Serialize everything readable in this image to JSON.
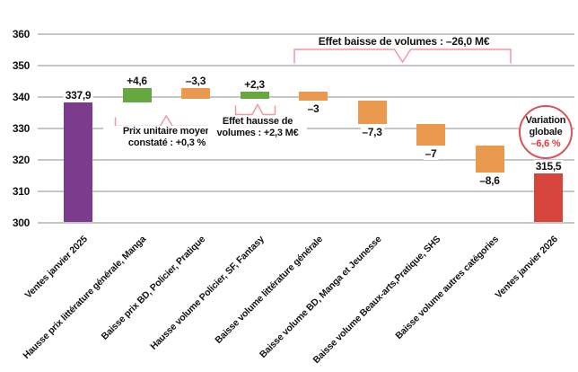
{
  "chart_data": {
    "type": "bar",
    "subtype": "waterfall",
    "unit": "M€",
    "ylim": [
      300,
      360
    ],
    "yticks": [
      360,
      350,
      340,
      330,
      320,
      310,
      300
    ],
    "grid": true,
    "bars": [
      {
        "label": "Ventes janvier 2025",
        "value": 337.9,
        "display": "337,9",
        "kind": "total",
        "label_pos": "above"
      },
      {
        "label": "Hausse prix littérature générale, Manga",
        "value": 4.6,
        "display": "+4,6",
        "kind": "delta",
        "label_pos": "above"
      },
      {
        "label": "Baisse prix BD, Policier, Pratique",
        "value": -3.3,
        "display": "–3,3",
        "kind": "delta",
        "label_pos": "above"
      },
      {
        "label": "Hausse volume Policier, SF, Fantasy",
        "value": 2.3,
        "display": "+2,3",
        "kind": "delta",
        "label_pos": "above"
      },
      {
        "label": "Baisse volume littérature générale",
        "value": -3,
        "display": "–3",
        "kind": "delta",
        "label_pos": "below"
      },
      {
        "label": "Baisse volume BD, Manga et Jeunesse",
        "value": -7.3,
        "display": "–7,3",
        "kind": "delta",
        "label_pos": "below"
      },
      {
        "label": "Baisse volume Beaux-arts,Pratique, SHS",
        "value": -7,
        "display": "–7",
        "kind": "delta",
        "label_pos": "below"
      },
      {
        "label": "Baisse volume autres catégories",
        "value": -8.6,
        "display": "–8,6",
        "kind": "delta",
        "label_pos": "below"
      },
      {
        "label": "Ventes janvier 2026",
        "value": 315.5,
        "display": "315,5",
        "kind": "total",
        "label_pos": "above"
      }
    ],
    "colors": {
      "start": "#7b3c8d",
      "increase": "#66a83f",
      "decrease": "#ea9a4f",
      "end": "#d5453c",
      "annotation": "#f2989e",
      "circle_border": "#d9535b",
      "negative_text": "#e03a40",
      "gridline": "#c6c6c6"
    },
    "annotations": {
      "price_effect": {
        "line1": "Prix unitaire moyen",
        "line2": "constaté : +0,3 %"
      },
      "volume_up_effect": {
        "line1": "Effet hausse de",
        "line2": "volumes : +2,3 M€"
      },
      "volume_down_effect": {
        "text": "Effet baisse de volumes : –26,0 M€"
      },
      "global_variation": {
        "line1": "Variation",
        "line2": "globale",
        "line3": "–6,6 %"
      }
    }
  }
}
